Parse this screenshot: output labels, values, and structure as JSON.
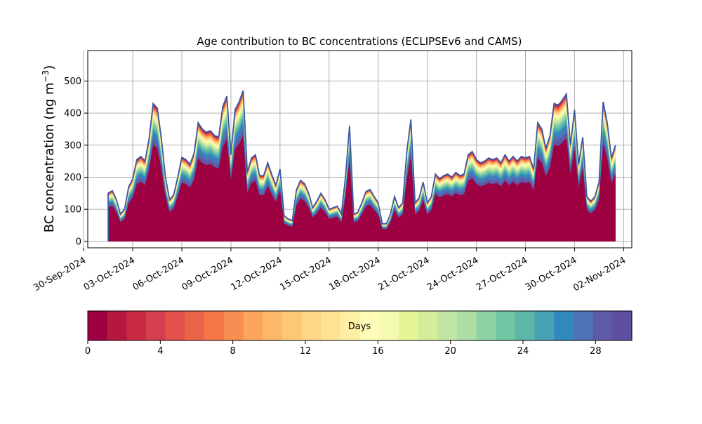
{
  "chart_data": [
    {
      "type": "area",
      "title": "Age contribution to BC concentrations (ECLIPSEv6 and CAMS)",
      "ylabel_main": "BC concentration (ng m",
      "ylabel_sup": "−3",
      "ylabel_close": ")",
      "stacked": true,
      "grid": true,
      "x_start": "2024-10-01T12:00",
      "x_end": "2024-11-01T12:00",
      "xlim": [
        "2024-09-30T06:00",
        "2024-11-02T12:00"
      ],
      "ylim": [
        -20,
        595
      ],
      "xticks": [
        {
          "date": "2024-09-30",
          "label": "30-Sep-2024"
        },
        {
          "date": "2024-10-03",
          "label": "03-Oct-2024"
        },
        {
          "date": "2024-10-06",
          "label": "06-Oct-2024"
        },
        {
          "date": "2024-10-09",
          "label": "09-Oct-2024"
        },
        {
          "date": "2024-10-12",
          "label": "12-Oct-2024"
        },
        {
          "date": "2024-10-15",
          "label": "15-Oct-2024"
        },
        {
          "date": "2024-10-18",
          "label": "18-Oct-2024"
        },
        {
          "date": "2024-10-21",
          "label": "21-Oct-2024"
        },
        {
          "date": "2024-10-24",
          "label": "24-Oct-2024"
        },
        {
          "date": "2024-10-27",
          "label": "27-Oct-2024"
        },
        {
          "date": "2024-10-30",
          "label": "30-Oct-2024"
        },
        {
          "date": "2024-11-02",
          "label": "02-Nov-2024"
        }
      ],
      "yticks": [
        {
          "value": 0,
          "label": "0"
        },
        {
          "value": 100,
          "label": "100"
        },
        {
          "value": 200,
          "label": "200"
        },
        {
          "value": 300,
          "label": "300"
        },
        {
          "value": 400,
          "label": "400"
        },
        {
          "value": 500,
          "label": "500"
        }
      ],
      "total_series": [
        [
          "2024-10-01T12:00",
          0
        ],
        [
          "2024-10-01T12:00",
          150
        ],
        [
          "2024-10-01T18:00",
          158
        ],
        [
          "2024-10-02T00:00",
          130
        ],
        [
          "2024-10-02T06:00",
          85
        ],
        [
          "2024-10-02T12:00",
          100
        ],
        [
          "2024-10-02T18:00",
          170
        ],
        [
          "2024-10-03T00:00",
          195
        ],
        [
          "2024-10-03T06:00",
          255
        ],
        [
          "2024-10-03T12:00",
          265
        ],
        [
          "2024-10-03T18:00",
          250
        ],
        [
          "2024-10-04T00:00",
          320
        ],
        [
          "2024-10-04T06:00",
          430
        ],
        [
          "2024-10-04T12:00",
          415
        ],
        [
          "2024-10-04T18:00",
          320
        ],
        [
          "2024-10-05T00:00",
          200
        ],
        [
          "2024-10-05T06:00",
          130
        ],
        [
          "2024-10-05T12:00",
          145
        ],
        [
          "2024-10-05T18:00",
          200
        ],
        [
          "2024-10-06T00:00",
          262
        ],
        [
          "2024-10-06T06:00",
          255
        ],
        [
          "2024-10-06T12:00",
          240
        ],
        [
          "2024-10-06T18:00",
          275
        ],
        [
          "2024-10-07T00:00",
          370
        ],
        [
          "2024-10-07T06:00",
          350
        ],
        [
          "2024-10-07T12:00",
          340
        ],
        [
          "2024-10-07T18:00",
          345
        ],
        [
          "2024-10-08T00:00",
          330
        ],
        [
          "2024-10-08T06:00",
          325
        ],
        [
          "2024-10-08T12:00",
          420
        ],
        [
          "2024-10-08T18:00",
          453
        ],
        [
          "2024-10-09T00:00",
          270
        ],
        [
          "2024-10-09T06:00",
          410
        ],
        [
          "2024-10-09T12:00",
          435
        ],
        [
          "2024-10-09T18:00",
          470
        ],
        [
          "2024-10-10T00:00",
          215
        ],
        [
          "2024-10-10T06:00",
          260
        ],
        [
          "2024-10-10T12:00",
          270
        ],
        [
          "2024-10-10T18:00",
          205
        ],
        [
          "2024-10-11T00:00",
          205
        ],
        [
          "2024-10-11T06:00",
          245
        ],
        [
          "2024-10-11T12:00",
          208
        ],
        [
          "2024-10-11T18:00",
          175
        ],
        [
          "2024-10-12T00:00",
          225
        ],
        [
          "2024-10-12T06:00",
          80
        ],
        [
          "2024-10-12T12:00",
          70
        ],
        [
          "2024-10-12T18:00",
          65
        ],
        [
          "2024-10-13T00:00",
          160
        ],
        [
          "2024-10-13T06:00",
          190
        ],
        [
          "2024-10-13T12:00",
          180
        ],
        [
          "2024-10-13T18:00",
          150
        ],
        [
          "2024-10-14T00:00",
          105
        ],
        [
          "2024-10-14T06:00",
          125
        ],
        [
          "2024-10-14T12:00",
          150
        ],
        [
          "2024-10-14T18:00",
          130
        ],
        [
          "2024-10-15T00:00",
          100
        ],
        [
          "2024-10-15T06:00",
          105
        ],
        [
          "2024-10-15T12:00",
          110
        ],
        [
          "2024-10-15T18:00",
          85
        ],
        [
          "2024-10-16T00:00",
          200
        ],
        [
          "2024-10-16T06:00",
          360
        ],
        [
          "2024-10-16T12:00",
          85
        ],
        [
          "2024-10-16T18:00",
          90
        ],
        [
          "2024-10-17T00:00",
          120
        ],
        [
          "2024-10-17T06:00",
          155
        ],
        [
          "2024-10-17T12:00",
          162
        ],
        [
          "2024-10-17T18:00",
          140
        ],
        [
          "2024-10-18T00:00",
          120
        ],
        [
          "2024-10-18T06:00",
          55
        ],
        [
          "2024-10-18T12:00",
          55
        ],
        [
          "2024-10-18T18:00",
          85
        ],
        [
          "2024-10-19T00:00",
          140
        ],
        [
          "2024-10-19T06:00",
          105
        ],
        [
          "2024-10-19T12:00",
          120
        ],
        [
          "2024-10-19T18:00",
          280
        ],
        [
          "2024-10-20T00:00",
          380
        ],
        [
          "2024-10-20T06:00",
          120
        ],
        [
          "2024-10-20T12:00",
          135
        ],
        [
          "2024-10-20T18:00",
          185
        ],
        [
          "2024-10-21T00:00",
          120
        ],
        [
          "2024-10-21T06:00",
          140
        ],
        [
          "2024-10-21T12:00",
          210
        ],
        [
          "2024-10-21T18:00",
          195
        ],
        [
          "2024-10-22T00:00",
          205
        ],
        [
          "2024-10-22T06:00",
          210
        ],
        [
          "2024-10-22T12:00",
          200
        ],
        [
          "2024-10-22T18:00",
          215
        ],
        [
          "2024-10-23T00:00",
          205
        ],
        [
          "2024-10-23T06:00",
          210
        ],
        [
          "2024-10-23T12:00",
          270
        ],
        [
          "2024-10-23T18:00",
          280
        ],
        [
          "2024-10-24T00:00",
          255
        ],
        [
          "2024-10-24T06:00",
          245
        ],
        [
          "2024-10-24T12:00",
          250
        ],
        [
          "2024-10-24T18:00",
          260
        ],
        [
          "2024-10-25T00:00",
          255
        ],
        [
          "2024-10-25T06:00",
          260
        ],
        [
          "2024-10-25T12:00",
          245
        ],
        [
          "2024-10-25T18:00",
          270
        ],
        [
          "2024-10-26T00:00",
          250
        ],
        [
          "2024-10-26T06:00",
          265
        ],
        [
          "2024-10-26T12:00",
          250
        ],
        [
          "2024-10-26T18:00",
          265
        ],
        [
          "2024-10-27T00:00",
          260
        ],
        [
          "2024-10-27T06:00",
          265
        ],
        [
          "2024-10-27T12:00",
          225
        ],
        [
          "2024-10-27T18:00",
          370
        ],
        [
          "2024-10-28T00:00",
          350
        ],
        [
          "2024-10-28T06:00",
          290
        ],
        [
          "2024-10-28T12:00",
          330
        ],
        [
          "2024-10-28T18:00",
          430
        ],
        [
          "2024-10-29T00:00",
          425
        ],
        [
          "2024-10-29T06:00",
          440
        ],
        [
          "2024-10-29T12:00",
          460
        ],
        [
          "2024-10-29T18:00",
          300
        ],
        [
          "2024-10-30T00:00",
          410
        ],
        [
          "2024-10-30T06:00",
          240
        ],
        [
          "2024-10-30T12:00",
          325
        ],
        [
          "2024-10-30T18:00",
          140
        ],
        [
          "2024-10-31T00:00",
          125
        ],
        [
          "2024-10-31T06:00",
          140
        ],
        [
          "2024-10-31T12:00",
          185
        ],
        [
          "2024-10-31T18:00",
          435
        ],
        [
          "2024-11-01T00:00",
          370
        ],
        [
          "2024-11-01T06:00",
          260
        ],
        [
          "2024-11-01T12:00",
          300
        ]
      ],
      "colorbar": {
        "label": "Days",
        "min": 0,
        "max": 30,
        "ticks": [
          {
            "value": 0,
            "label": "0"
          },
          {
            "value": 4,
            "label": "4"
          },
          {
            "value": 8,
            "label": "8"
          },
          {
            "value": 12,
            "label": "12"
          },
          {
            "value": 16,
            "label": "16"
          },
          {
            "value": 20,
            "label": "20"
          },
          {
            "value": 24,
            "label": "24"
          },
          {
            "value": 28,
            "label": "28"
          }
        ],
        "colors": [
          "#9e0142",
          "#b5173f",
          "#c92a41",
          "#d53e4f",
          "#e2514a",
          "#eb6347",
          "#f57748",
          "#f98e52",
          "#fca55d",
          "#fdb768",
          "#fdc776",
          "#fed685",
          "#fee393",
          "#ffefa5",
          "#fffbb8",
          "#f4fab0",
          "#e6f598",
          "#d4ed9b",
          "#bfe5a0",
          "#abdda4",
          "#8dd1a4",
          "#71c6a4",
          "#5cb7a9",
          "#47a2b4",
          "#3288bd",
          "#4e73b6",
          "#5e5aa8",
          "#5e4fa2"
        ]
      }
    }
  ]
}
